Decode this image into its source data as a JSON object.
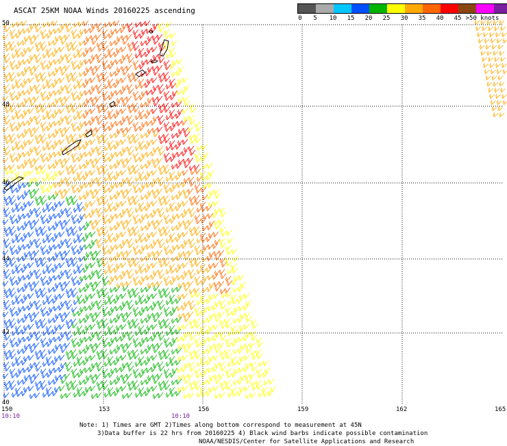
{
  "title": "ASCAT 25KM NOAA Winds 20160225 ascending",
  "legend": {
    "colors": [
      "#555555",
      "#aaaaaa",
      "#00c8ff",
      "#0050ff",
      "#00b400",
      "#ffff00",
      "#ffaa00",
      "#ff6600",
      "#ff0000",
      "#8b4513",
      "#ff00ff",
      "#7a1fa0"
    ],
    "labels": [
      "0",
      "5",
      "10",
      "15",
      "20",
      "25",
      "30",
      "35",
      "40",
      "45",
      ">50 knots"
    ]
  },
  "map": {
    "lon_ticks": [
      "150",
      "153",
      "156",
      "159",
      "162",
      "165"
    ],
    "lat_ticks": [
      "40",
      "42",
      "44",
      "46",
      "48",
      "50"
    ],
    "time_labels": [
      "10:10",
      "10:10"
    ]
  },
  "notes": {
    "line1": "Note: 1) Times are GMT 2)Times along bottom correspond to measurement at 45N",
    "line2": "3)Data buffer is 22 hrs from 20160225 4) Black wind barbs indicate possible contamination",
    "line3": "NOAA/NESDIS/Center for Satellite Applications and Research"
  }
}
